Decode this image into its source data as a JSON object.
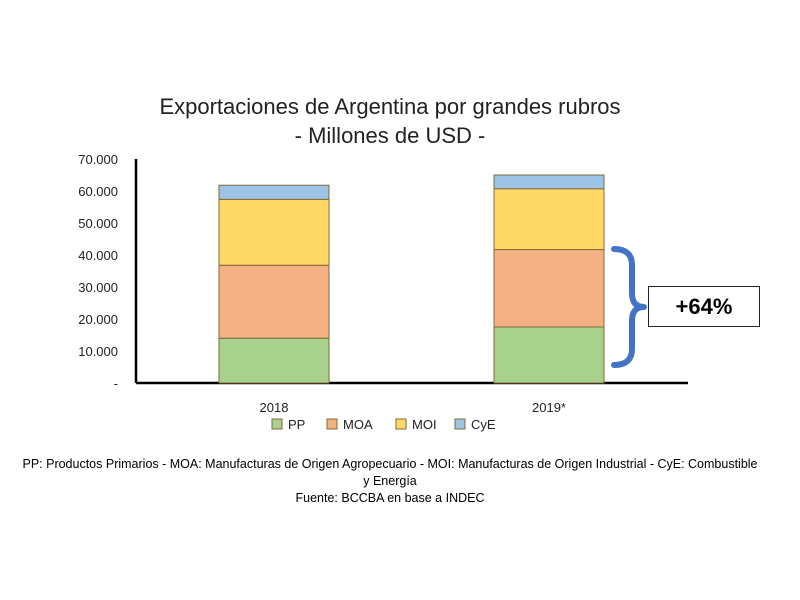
{
  "chart_data": {
    "type": "bar",
    "stacked": true,
    "title": [
      "Exportaciones de Argentina por grandes rubros",
      "- Millones de USD -"
    ],
    "categories": [
      "2018",
      "2019*"
    ],
    "series": [
      {
        "name": "PP",
        "color": "#a9d18e",
        "values": [
          14000,
          17500
        ]
      },
      {
        "name": "MOA",
        "color": "#f4b183",
        "values": [
          22800,
          24200
        ]
      },
      {
        "name": "MOI",
        "color": "#ffd966",
        "values": [
          20600,
          19000
        ]
      },
      {
        "name": "CyE",
        "color": "#9dc3e6",
        "values": [
          4400,
          4300
        ]
      }
    ],
    "ylim": [
      0,
      70000
    ],
    "ytick_labels": [
      "-",
      "10.000",
      "20.000",
      "30.000",
      "40.000",
      "50.000",
      "60.000",
      "70.000"
    ],
    "legend_position": "bottom",
    "grid": false,
    "annotation": {
      "text": "+64%",
      "brace_color": "#4472c4"
    }
  },
  "footnote": {
    "line1": "PP: Productos Primarios - MOA: Manufacturas de Origen Agropecuario - MOI: Manufacturas de Origen Industrial - CyE: Combustible y Energía",
    "line2": "Fuente: BCCBA en base a INDEC"
  }
}
